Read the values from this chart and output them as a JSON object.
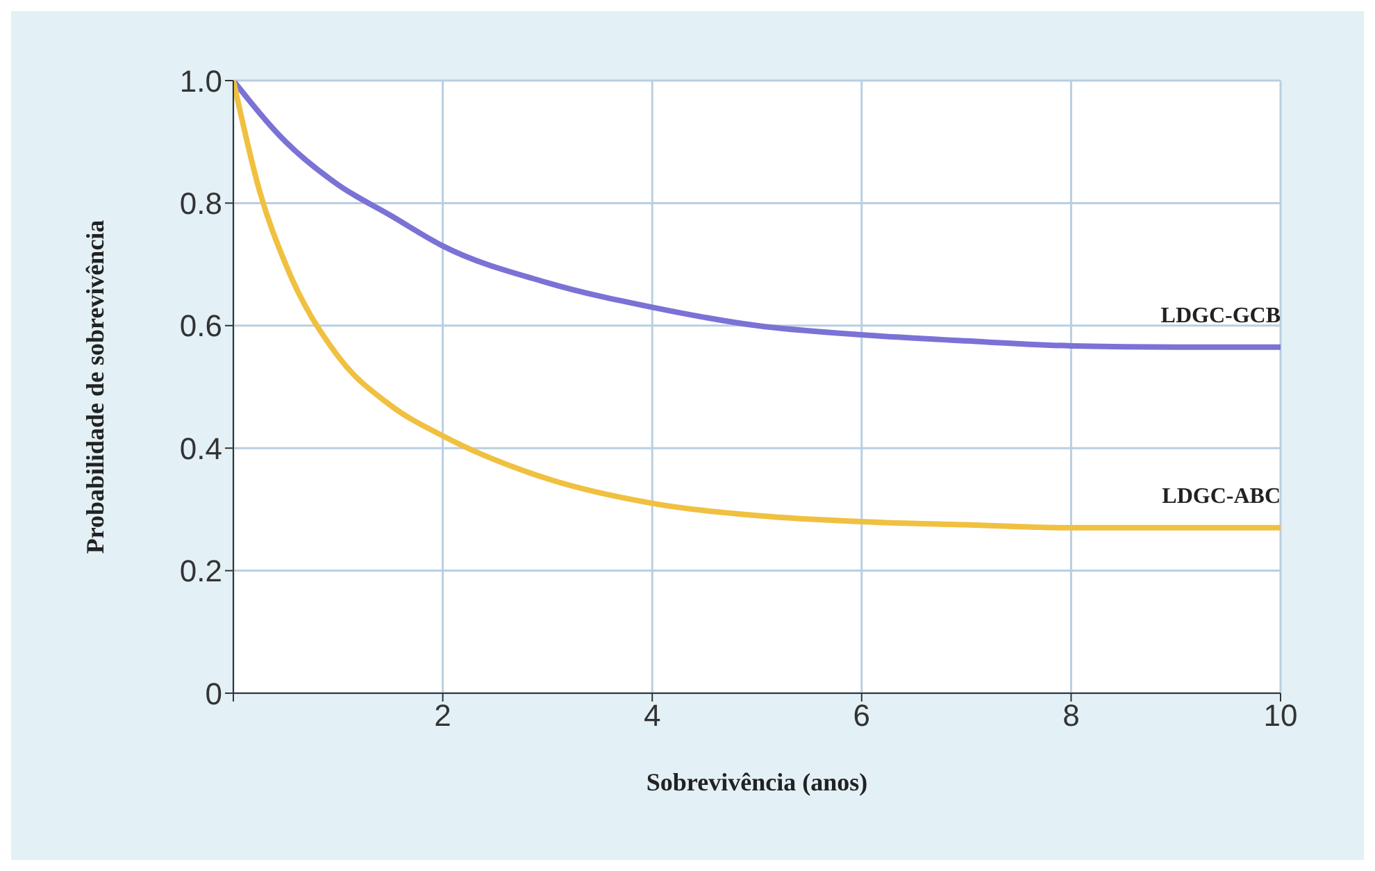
{
  "chart_data": {
    "type": "line",
    "xlabel": "Sobrevivência (anos)",
    "ylabel": "Probabilidade de sobrevivência",
    "xlim": [
      0,
      10
    ],
    "ylim": [
      0,
      1
    ],
    "xticks": [
      {
        "value": 0,
        "label": null
      },
      2,
      4,
      6,
      8,
      10
    ],
    "yticks": [
      0,
      0.2,
      0.4,
      0.6,
      0.8,
      {
        "value": 1,
        "label": "1.0"
      }
    ],
    "grid": true,
    "marker": "none",
    "line_style": "solid",
    "series": [
      {
        "name": "LDGC-GCB",
        "color": "#7b72d6",
        "x": [
          0,
          0.5,
          1,
          1.5,
          2,
          3,
          4,
          5,
          6,
          7,
          8,
          9,
          10
        ],
        "values": [
          1,
          0.9,
          0.83,
          0.78,
          0.73,
          0.67,
          0.63,
          0.6,
          0.585,
          0.575,
          0.567,
          0.565,
          0.565
        ]
      },
      {
        "name": "LDGC-ABC",
        "color": "#f0c040",
        "x": [
          0,
          0.25,
          0.5,
          1,
          1.5,
          2,
          3,
          4,
          5,
          6,
          7,
          8,
          9,
          10
        ],
        "values": [
          1,
          0.82,
          0.7,
          0.55,
          0.47,
          0.42,
          0.35,
          0.31,
          0.29,
          0.28,
          0.275,
          0.27,
          0.27,
          0.27
        ]
      }
    ]
  }
}
